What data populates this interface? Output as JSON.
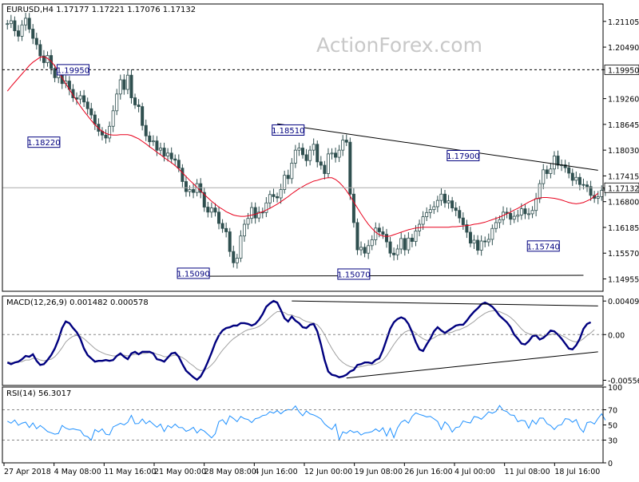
{
  "header": {
    "symbol_line": "EURUSD,H4  1.17177  1.17221  1.17076  1.17132"
  },
  "watermark": "ActionForex.com",
  "colors": {
    "background": "#ffffff",
    "grid": "#d9d9d9",
    "axis": "#000000",
    "candle": "#2f4f4f",
    "ma": "#e8001c",
    "macd_main": "#00007f",
    "macd_signal": "#a0a0a0",
    "rsi": "#1e90ff",
    "trendline": "#000000",
    "label_border": "#00007f",
    "watermark": "#c8c8c8"
  },
  "time_axis": {
    "labels": [
      "27 Apr 2018",
      "4 May 08:00",
      "11 May 16:00",
      "21 May 00:00",
      "28 May 08:00",
      "4 Jun 16:00",
      "12 Jun 00:00",
      "19 Jun 08:00",
      "26 Jun 16:00",
      "4 Jul 00:00",
      "11 Jul 08:00",
      "18 Jul 16:00"
    ]
  },
  "price_panel": {
    "ylim": [
      1.1466,
      1.2152
    ],
    "tick_labels": [
      "1.21105",
      "1.20490",
      "1.19950",
      "1.19260",
      "1.18645",
      "1.18030",
      "1.17415",
      "1.17132",
      "1.16800",
      "1.16185",
      "1.15570",
      "1.14955"
    ],
    "tick_values": [
      1.21105,
      1.2049,
      1.1995,
      1.1926,
      1.18645,
      1.1803,
      1.17415,
      1.17132,
      1.168,
      1.16185,
      1.1557,
      1.14955
    ],
    "highlight_levels": [
      {
        "value": 1.1995,
        "label": "1.19950",
        "style": "dashed"
      },
      {
        "value": 1.17132,
        "label": "1.17132",
        "style": "solid"
      }
    ],
    "annotations": [
      {
        "text": "1.19950",
        "price": 1.1995,
        "bar": 18
      },
      {
        "text": "1.18220",
        "price": 1.1822,
        "bar": 10
      },
      {
        "text": "1.18510",
        "price": 1.1851,
        "bar": 77
      },
      {
        "text": "1.17900",
        "price": 1.179,
        "bar": 125
      },
      {
        "text": "1.15090",
        "price": 1.1509,
        "bar": 51
      },
      {
        "text": "1.15070",
        "price": 1.1507,
        "bar": 95
      },
      {
        "text": "1.15740",
        "price": 1.1574,
        "bar": 147
      }
    ],
    "trendlines": [
      {
        "from": {
          "bar": 74,
          "price": 1.1866
        },
        "to": {
          "bar": 162,
          "price": 1.1755
        }
      },
      {
        "from": {
          "bar": 51,
          "price": 1.1502
        },
        "to": {
          "bar": 158,
          "price": 1.1504
        }
      }
    ]
  },
  "macd_panel": {
    "title": "MACD(12,26,9) 0.001482 0.000578",
    "ylim": [
      -0.0062,
      0.0047
    ],
    "tick_labels": [
      "0.004094",
      "0.00",
      "-0.005568"
    ],
    "tick_values": [
      0.004094,
      0.0,
      -0.005568
    ],
    "trendlines": [
      {
        "from": {
          "bar": 78,
          "value": 0.0041
        },
        "to": {
          "bar": 162,
          "value": 0.0035
        }
      },
      {
        "from": {
          "bar": 93,
          "value": -0.0053
        },
        "to": {
          "bar": 162,
          "value": -0.0021
        }
      }
    ]
  },
  "rsi_panel": {
    "title": "RSI(14) 56.3017",
    "ylim": [
      0,
      100
    ],
    "tick_labels": [
      "100",
      "70",
      "50",
      "30",
      "0"
    ],
    "tick_values": [
      100,
      70,
      50,
      30,
      0
    ],
    "dashed_levels": [
      70,
      30
    ]
  },
  "chart_data": {
    "type": "candlestick",
    "title": "EURUSD,H4",
    "bars": 163,
    "close": [
      1.2105,
      1.2112,
      1.2088,
      1.2075,
      1.2102,
      1.2118,
      1.2092,
      1.207,
      1.2055,
      1.2028,
      1.2012,
      1.2029,
      1.1998,
      1.1976,
      1.1988,
      1.1962,
      1.1968,
      1.1948,
      1.1928,
      1.1925,
      1.1933,
      1.1918,
      1.1902,
      1.1887,
      1.1865,
      1.1848,
      1.1839,
      1.1832,
      1.186,
      1.1897,
      1.1937,
      1.1971,
      1.1948,
      1.1982,
      1.1928,
      1.1911,
      1.1907,
      1.1862,
      1.1837,
      1.1823,
      1.1825,
      1.1803,
      1.1808,
      1.1789,
      1.1796,
      1.1782,
      1.1779,
      1.176,
      1.1728,
      1.1704,
      1.1709,
      1.1702,
      1.1723,
      1.1702,
      1.1667,
      1.1655,
      1.1665,
      1.1655,
      1.1628,
      1.1616,
      1.1608,
      1.1561,
      1.1534,
      1.1545,
      1.1598,
      1.1626,
      1.164,
      1.1666,
      1.1641,
      1.1655,
      1.1654,
      1.1677,
      1.1697,
      1.1692,
      1.1689,
      1.1709,
      1.1743,
      1.1735,
      1.1772,
      1.1803,
      1.1808,
      1.1792,
      1.1778,
      1.1803,
      1.1817,
      1.1775,
      1.1767,
      1.1747,
      1.1794,
      1.1796,
      1.1786,
      1.1803,
      1.1827,
      1.1822,
      1.1698,
      1.163,
      1.1565,
      1.1571,
      1.1557,
      1.1575,
      1.1589,
      1.1617,
      1.1608,
      1.1602,
      1.1584,
      1.1557,
      1.1553,
      1.1567,
      1.1592,
      1.1565,
      1.1593,
      1.1585,
      1.161,
      1.1626,
      1.1644,
      1.1654,
      1.1661,
      1.1668,
      1.1683,
      1.1698,
      1.1677,
      1.1682,
      1.1665,
      1.1659,
      1.1641,
      1.1625,
      1.1607,
      1.1581,
      1.1588,
      1.1564,
      1.1586,
      1.1584,
      1.159,
      1.1616,
      1.163,
      1.1637,
      1.1655,
      1.1652,
      1.1638,
      1.1645,
      1.1648,
      1.1663,
      1.1651,
      1.1651,
      1.1659,
      1.1687,
      1.1723,
      1.1756,
      1.1747,
      1.1758,
      1.1789,
      1.1767,
      1.1768,
      1.1761,
      1.1748,
      1.1731,
      1.1738,
      1.1721,
      1.172,
      1.1716,
      1.1695,
      1.1688,
      1.1692,
      1.1707,
      1.1713
    ],
    "ma": [
      1.1944,
      1.1955,
      1.1965,
      1.1975,
      1.1985,
      1.1995,
      1.2005,
      1.2013,
      1.2019,
      1.2025,
      1.2026,
      1.2022,
      1.2015,
      1.2004,
      1.1991,
      1.1976,
      1.1962,
      1.1948,
      1.1934,
      1.1921,
      1.1908,
      1.1896,
      1.1885,
      1.1874,
      1.1864,
      1.1855,
      1.1848,
      1.1843,
      1.184,
      1.1839,
      1.1839,
      1.184,
      1.184,
      1.184,
      1.1838,
      1.1834,
      1.183,
      1.1824,
      1.1818,
      1.1811,
      1.1805,
      1.1798,
      1.1792,
      1.1785,
      1.1779,
      1.1773,
      1.1766,
      1.1758,
      1.1749,
      1.174,
      1.1731,
      1.1723,
      1.1714,
      1.1706,
      1.1697,
      1.1689,
      1.1681,
      1.1674,
      1.1667,
      1.1662,
      1.1656,
      1.1652,
      1.1648,
      1.1646,
      1.1645,
      1.1645,
      1.1646,
      1.1648,
      1.165,
      1.1653,
      1.1656,
      1.166,
      1.1664,
      1.1669,
      1.1674,
      1.168,
      1.1686,
      1.1692,
      1.1699,
      1.1705,
      1.1711,
      1.1716,
      1.1721,
      1.1725,
      1.1729,
      1.1731,
      1.1734,
      1.1736,
      1.1737,
      1.1737,
      1.1733,
      1.1726,
      1.1717,
      1.1706,
      1.1693,
      1.1679,
      1.1665,
      1.1651,
      1.1638,
      1.1626,
      1.1616,
      1.1607,
      1.1601,
      1.1598,
      1.1597,
      1.1598,
      1.1601,
      1.1604,
      1.1607,
      1.161,
      1.1613,
      1.1615,
      1.1617,
      1.1618,
      1.1619,
      1.1619,
      1.1619,
      1.1619,
      1.1619,
      1.1619,
      1.1619,
      1.1619,
      1.162,
      1.162,
      1.1621,
      1.1622,
      1.1623,
      1.1624,
      1.1626,
      1.1627,
      1.1629,
      1.1631,
      1.1634,
      1.1637,
      1.164,
      1.1643,
      1.1647,
      1.1651,
      1.1655,
      1.166,
      1.1664,
      1.1669,
      1.1674,
      1.1679,
      1.1683,
      1.1687,
      1.1689,
      1.169,
      1.169,
      1.1689,
      1.1688,
      1.1686,
      1.1684,
      1.1681,
      1.1678,
      1.1676,
      1.1675,
      1.1676,
      1.1678,
      1.1682,
      1.1686,
      1.1693,
      1.17
    ],
    "macd": [
      -0.0034,
      -0.0036,
      -0.0034,
      -0.0033,
      -0.003,
      -0.0026,
      -0.0027,
      -0.0024,
      -0.0032,
      -0.0037,
      -0.0036,
      -0.0031,
      -0.0025,
      -0.0017,
      -0.0006,
      0.0008,
      0.0016,
      0.0014,
      0.0008,
      0.0003,
      -0.0005,
      -0.0017,
      -0.0025,
      -0.0029,
      -0.0033,
      -0.0032,
      -0.0032,
      -0.0031,
      -0.0032,
      -0.0031,
      -0.0026,
      -0.0023,
      -0.0027,
      -0.003,
      -0.0023,
      -0.0021,
      -0.0024,
      -0.0021,
      -0.0021,
      -0.0021,
      -0.0023,
      -0.003,
      -0.0031,
      -0.0033,
      -0.0028,
      -0.0023,
      -0.0022,
      -0.0027,
      -0.0036,
      -0.0044,
      -0.0048,
      -0.0052,
      -0.0055,
      -0.0051,
      -0.0043,
      -0.0033,
      -0.0022,
      -0.001,
      -0.0001,
      0.0005,
      0.0008,
      0.0009,
      0.0011,
      0.0011,
      0.0014,
      0.0014,
      0.0013,
      0.0011,
      0.0013,
      0.0018,
      0.0025,
      0.0034,
      0.0038,
      0.0041,
      0.0039,
      0.003,
      0.002,
      0.0016,
      0.0022,
      0.0017,
      0.0014,
      0.0009,
      0.0008,
      0.0012,
      0.0013,
      0.0004,
      -0.0012,
      -0.0031,
      -0.0045,
      -0.0049,
      -0.005,
      -0.0052,
      -0.0051,
      -0.0049,
      -0.0045,
      -0.0043,
      -0.0037,
      -0.0036,
      -0.0034,
      -0.0034,
      -0.0035,
      -0.0031,
      -0.0029,
      -0.0019,
      -0.0006,
      0.0007,
      0.0015,
      0.0019,
      0.0021,
      0.0019,
      0.0013,
      0.0003,
      -0.0009,
      -0.0018,
      -0.002,
      -0.0012,
      -0.0005,
      0.0004,
      0.0009,
      0.0005,
      0.0002,
      0.0005,
      0.0008,
      0.0011,
      0.0012,
      0.0012,
      0.0017,
      0.0023,
      0.0028,
      0.0032,
      0.0037,
      0.0039,
      0.0037,
      0.0034,
      0.0029,
      0.0023,
      0.0019,
      0.0015,
      0.0009,
      0.0,
      -0.0005,
      -0.0011,
      -0.0012,
      -0.0008,
      -0.0002,
      -0.0001,
      -0.0006,
      -0.0004,
      0.0,
      0.0005,
      0.0004,
      0.0,
      -0.0005,
      -0.0011,
      -0.0017,
      -0.0018,
      -0.0013,
      -0.0005,
      0.0007,
      0.0013,
      0.0015
    ],
    "macd_signal": [
      -0.0033,
      -0.0034,
      -0.0034,
      -0.0033,
      -0.0033,
      -0.0031,
      -0.0031,
      -0.0029,
      -0.0029,
      -0.0031,
      -0.0032,
      -0.0031,
      -0.003,
      -0.0027,
      -0.0022,
      -0.0016,
      -0.0009,
      -0.0005,
      -0.0002,
      -0.0001,
      -0.0002,
      -0.0005,
      -0.0009,
      -0.0013,
      -0.0017,
      -0.002,
      -0.0022,
      -0.0024,
      -0.0025,
      -0.0026,
      -0.0026,
      -0.0025,
      -0.0025,
      -0.0026,
      -0.0025,
      -0.0024,
      -0.0024,
      -0.0023,
      -0.0023,
      -0.0022,
      -0.0022,
      -0.0024,
      -0.0025,
      -0.0027,
      -0.0027,
      -0.0026,
      -0.0025,
      -0.0026,
      -0.0028,
      -0.0031,
      -0.0035,
      -0.0038,
      -0.0042,
      -0.0044,
      -0.0043,
      -0.0041,
      -0.0037,
      -0.0032,
      -0.0025,
      -0.0019,
      -0.0014,
      -0.0009,
      -0.0005,
      -0.0002,
      0.0001,
      0.0004,
      0.0006,
      0.0007,
      0.0008,
      0.001,
      0.0013,
      0.0017,
      0.0021,
      0.0025,
      0.0028,
      0.0028,
      0.0027,
      0.0024,
      0.0024,
      0.0022,
      0.0021,
      0.0018,
      0.0016,
      0.0015,
      0.0014,
      0.0012,
      0.0007,
      0.0,
      -0.0009,
      -0.0017,
      -0.0024,
      -0.003,
      -0.0034,
      -0.0037,
      -0.0039,
      -0.004,
      -0.004,
      -0.0039,
      -0.0038,
      -0.0037,
      -0.0037,
      -0.0036,
      -0.0034,
      -0.0031,
      -0.0026,
      -0.0019,
      -0.0012,
      -0.0006,
      -0.0001,
      0.0003,
      0.0005,
      0.0005,
      0.0002,
      -0.0002,
      -0.0005,
      -0.0007,
      -0.0006,
      -0.0004,
      -0.0001,
      0.0,
      0.0001,
      0.0002,
      0.0003,
      0.0005,
      0.0006,
      0.0008,
      0.001,
      0.0013,
      0.0016,
      0.002,
      0.0023,
      0.0026,
      0.0028,
      0.0029,
      0.0029,
      0.0028,
      0.0026,
      0.0024,
      0.0021,
      0.0017,
      0.0012,
      0.0007,
      0.0003,
      0.0001,
      0.0,
      0.0,
      -0.0001,
      -0.0002,
      -0.0001,
      0.0,
      0.0001,
      0.0001,
      -0.0001,
      -0.0003,
      -0.0006,
      -0.0008,
      -0.0009,
      -0.0008,
      -0.0005,
      -0.0001,
      0.0002,
      0.0006
    ],
    "rsi": [
      54.9,
      52.3,
      56.5,
      49.6,
      52.4,
      53.7,
      46.5,
      52.6,
      45.0,
      49.2,
      45.7,
      41.3,
      39.7,
      37.8,
      38.8,
      49.3,
      45.8,
      44.0,
      45.0,
      43.7,
      42.9,
      36.0,
      34.6,
      29.9,
      43.9,
      40.8,
      44.8,
      37.7,
      36.9,
      47.4,
      49.7,
      52.2,
      50.1,
      53.5,
      62.6,
      51.6,
      51.9,
      57.8,
      51.6,
      55.4,
      51.1,
      47.0,
      51.1,
      41.2,
      49.2,
      46.2,
      51.1,
      46.6,
      46.5,
      41.6,
      43.5,
      46.9,
      39.4,
      44.3,
      41.9,
      37.5,
      33.0,
      38.3,
      54.4,
      57.0,
      50.8,
      62.0,
      58.5,
      54.3,
      61.2,
      58.3,
      57.2,
      53.1,
      58.3,
      59.3,
      62.4,
      63.2,
      67.5,
      65.6,
      68.9,
      64.7,
      68.7,
      70.3,
      69.6,
      75.1,
      67.3,
      62.1,
      68.5,
      64.6,
      63.2,
      60.9,
      57.9,
      51.3,
      47.3,
      44.1,
      51.1,
      30.4,
      40.9,
      38.9,
      42.9,
      40.1,
      41.5,
      36.7,
      39.4,
      40.0,
      41.2,
      44.7,
      41.4,
      46.3,
      35.3,
      45.7,
      33.2,
      46.1,
      53.6,
      56.4,
      52.4,
      61.3,
      65.9,
      63.9,
      62.5,
      60.6,
      61.3,
      58.0,
      54.7,
      44.0,
      54.1,
      49.4,
      40.6,
      46.6,
      47.4,
      55.3,
      53.5,
      52.6,
      61.1,
      60.1,
      57.5,
      62.1,
      67.3,
      65.5,
      67.8,
      75.6,
      69.2,
      67.6,
      63.1,
      62.6,
      54.2,
      56.2,
      55.3,
      45.7,
      56.3,
      51.0,
      59.1,
      59.0,
      51.7,
      49.2,
      44.0,
      49.3,
      50.3,
      58.3,
      57.6,
      53.6,
      57.1,
      45.9,
      40.3,
      53.2,
      54.1,
      51.2,
      58.7,
      64.7,
      56.3
    ]
  }
}
